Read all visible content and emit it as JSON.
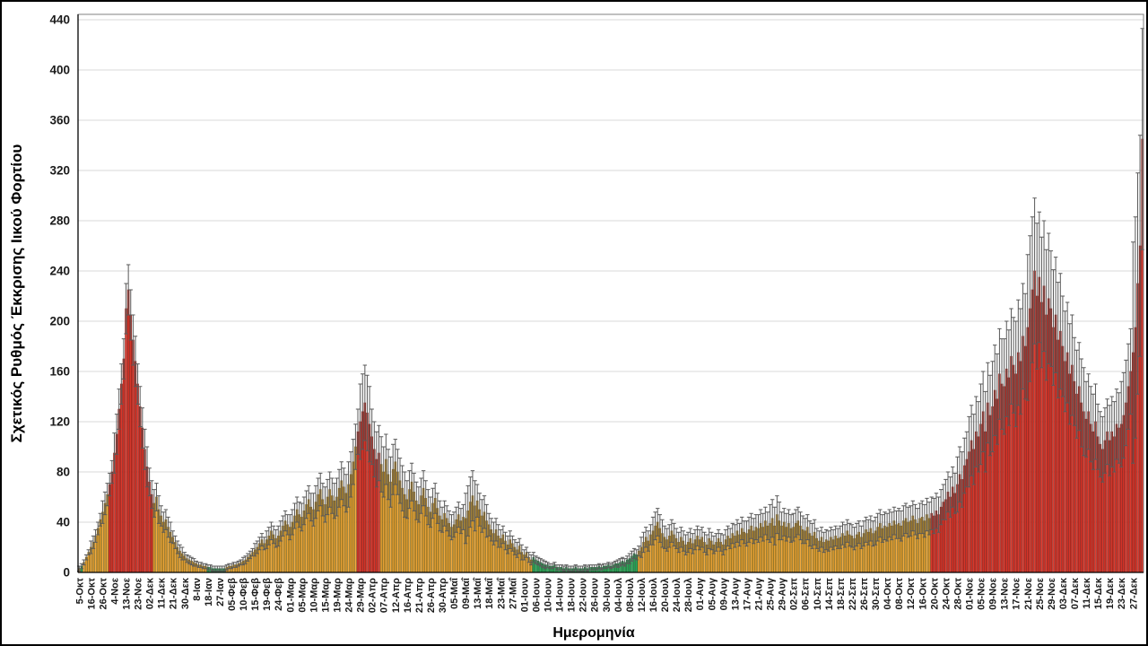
{
  "chart_data": {
    "type": "bar",
    "title": "",
    "ylabel": "Σχετικός Ρυθμός Έκκρισης Ιικού Φορτίου",
    "xlabel": "Ημερομηνία",
    "legend": "none",
    "grid": "horizontal",
    "y_axis": {
      "min": 0,
      "max": 440,
      "step": 40
    },
    "bars_per_label": 5,
    "categories": [
      "5-Οκτ",
      "16-Οκτ",
      "26-Οκτ",
      "4-Νοε",
      "13-Νοε",
      "23-Νοε",
      "02-Δεκ",
      "11-Δεκ",
      "21-Δεκ",
      "30-Δεκ",
      "8-Ιαν",
      "18-Ιαν",
      "27-Ιαν",
      "05-Φεβ",
      "10-Φεβ",
      "15-Φεβ",
      "19-Φεβ",
      "24-Φεβ",
      "01-Μαρ",
      "05-Μαρ",
      "10-Μαρ",
      "15-Μαρ",
      "19-Μαρ",
      "24-Μαρ",
      "29-Μαρ",
      "02-Απρ",
      "07-Απρ",
      "12-Απρ",
      "16-Απρ",
      "21-Απρ",
      "26-Απρ",
      "30-Απρ",
      "05-Μαΐ",
      "09-Μαΐ",
      "13-Μαΐ",
      "18-Μαΐ",
      "23-Μαΐ",
      "27-Μαΐ",
      "01-Ιουν",
      "06-Ιουν",
      "10-Ιουν",
      "14-Ιουν",
      "18-Ιουν",
      "22-Ιουν",
      "26-Ιουν",
      "30-Ιουν",
      "04-Ιουλ",
      "08-Ιουλ",
      "12-Ιουλ",
      "16-Ιουλ",
      "20-Ιουλ",
      "24-Ιουλ",
      "28-Ιουλ",
      "01-Αυγ",
      "05-Αυγ",
      "09-Αυγ",
      "13-Αυγ",
      "17-Αυγ",
      "21-Αυγ",
      "25-Αυγ",
      "29-Αυγ",
      "02-Σεπ",
      "06-Σεπ",
      "10-Σεπ",
      "14-Σεπ",
      "18-Σεπ",
      "22-Σεπ",
      "26-Σεπ",
      "30-Σεπ",
      "04-Οκτ",
      "08-Οκτ",
      "12-Οκτ",
      "16-Οκτ",
      "20-Οκτ",
      "24-Οκτ",
      "28-Οκτ",
      "01-Νοε",
      "05-Νοε",
      "09-Νοε",
      "13-Νοε",
      "17-Νοε",
      "21-Νοε",
      "25-Νοε",
      "29-Νοε",
      "03-Δεκ",
      "07-Δεκ",
      "11-Δεκ",
      "15-Δεκ",
      "19-Δεκ",
      "23-Δεκ",
      "27-Δεκ"
    ],
    "value_groups": [
      [
        3,
        5,
        8,
        12,
        16
      ],
      [
        20,
        24,
        29,
        35,
        42
      ],
      [
        48,
        55,
        62,
        70,
        80
      ],
      [
        95,
        110,
        130,
        150,
        170
      ],
      [
        210,
        225,
        205,
        185,
        168
      ],
      [
        150,
        132,
        115,
        98,
        84
      ],
      [
        72,
        62,
        55,
        60,
        50
      ],
      [
        45,
        40,
        42,
        36,
        32
      ],
      [
        28,
        24,
        20,
        17,
        15
      ],
      [
        13,
        11,
        10,
        9,
        8
      ],
      [
        7,
        6,
        6,
        5,
        5
      ],
      [
        4,
        4,
        3,
        3,
        3
      ],
      [
        3,
        3,
        3,
        4,
        5
      ],
      [
        5,
        6,
        6,
        7,
        8
      ],
      [
        9,
        10,
        12,
        14,
        16
      ],
      [
        18,
        20,
        23,
        26,
        23
      ],
      [
        26,
        29,
        33,
        30,
        27
      ],
      [
        29,
        33,
        37,
        41,
        38
      ],
      [
        36,
        40,
        45,
        50,
        46
      ],
      [
        44,
        49,
        54,
        58,
        52
      ],
      [
        50,
        56,
        62,
        66,
        58
      ],
      [
        54,
        60,
        66,
        61,
        57
      ],
      [
        60,
        67,
        73,
        68,
        63
      ],
      [
        70,
        78,
        88,
        100,
        112
      ],
      [
        120,
        128,
        135,
        127,
        118
      ],
      [
        108,
        98,
        90,
        95,
        86
      ],
      [
        80,
        90,
        78,
        72,
        82
      ],
      [
        88,
        80,
        73,
        67,
        62
      ],
      [
        58,
        66,
        72,
        64,
        57
      ],
      [
        54,
        61,
        67,
        59,
        52
      ],
      [
        48,
        55,
        59,
        51,
        45
      ],
      [
        42,
        47,
        43,
        39,
        36
      ],
      [
        38,
        42,
        46,
        41,
        44
      ],
      [
        43,
        49,
        56,
        61,
        53
      ],
      [
        57,
        50,
        45,
        48,
        41
      ],
      [
        38,
        34,
        31,
        34,
        29
      ],
      [
        27,
        30,
        25,
        22,
        26
      ],
      [
        23,
        20,
        18,
        21,
        16
      ],
      [
        14,
        16,
        12,
        10,
        12
      ],
      [
        10,
        9,
        8,
        7,
        6
      ],
      [
        6,
        5,
        5,
        6,
        4
      ],
      [
        4,
        4,
        3,
        4,
        3
      ],
      [
        3,
        3,
        4,
        3,
        3
      ],
      [
        3,
        4,
        3,
        4,
        4
      ],
      [
        4,
        4,
        5,
        4,
        5
      ],
      [
        5,
        6,
        5,
        6,
        7
      ],
      [
        7,
        8,
        9,
        8,
        10
      ],
      [
        11,
        13,
        15,
        14,
        17
      ],
      [
        20,
        24,
        28,
        25,
        30
      ],
      [
        33,
        37,
        40,
        35,
        31
      ],
      [
        28,
        26,
        29,
        33,
        30
      ],
      [
        27,
        24,
        28,
        25,
        22
      ],
      [
        24,
        27,
        23,
        26,
        29
      ],
      [
        26,
        28,
        24,
        22,
        27
      ],
      [
        25,
        22,
        24,
        27,
        24
      ],
      [
        22,
        26,
        29,
        27,
        31
      ],
      [
        29,
        33,
        30,
        35,
        32
      ],
      [
        31,
        34,
        37,
        33,
        36
      ],
      [
        35,
        39,
        36,
        41,
        37
      ],
      [
        39,
        43,
        37,
        46,
        41
      ],
      [
        37,
        40,
        36,
        39,
        35
      ],
      [
        36,
        39,
        41,
        37,
        34
      ],
      [
        33,
        36,
        31,
        29,
        32
      ],
      [
        27,
        25,
        28,
        24,
        26
      ],
      [
        25,
        28,
        26,
        29,
        27
      ],
      [
        28,
        31,
        29,
        33,
        30
      ],
      [
        29,
        27,
        30,
        32,
        28
      ],
      [
        31,
        34,
        32,
        35,
        31
      ],
      [
        33,
        36,
        39,
        35,
        37
      ],
      [
        36,
        39,
        37,
        41,
        38
      ],
      [
        39,
        37,
        41,
        43,
        40
      ],
      [
        41,
        45,
        42,
        39,
        43
      ],
      [
        44,
        41,
        46,
        43,
        47
      ],
      [
        45,
        49,
        46,
        52,
        56
      ],
      [
        58,
        64,
        60,
        68,
        63
      ],
      [
        70,
        78,
        74,
        85,
        90
      ],
      [
        96,
        105,
        98,
        112,
        108
      ],
      [
        118,
        128,
        112,
        135,
        125
      ],
      [
        132,
        145,
        138,
        158,
        150
      ],
      [
        148,
        162,
        155,
        172,
        165
      ],
      [
        158,
        175,
        168,
        188,
        180
      ],
      [
        195,
        210,
        225,
        240,
        220
      ],
      [
        235,
        215,
        228,
        205,
        218
      ],
      [
        210,
        195,
        205,
        185,
        192
      ],
      [
        180,
        168,
        175,
        158,
        165
      ],
      [
        152,
        142,
        148,
        135,
        128
      ],
      [
        122,
        128,
        118,
        112,
        120
      ],
      [
        108,
        102,
        98,
        105,
        112
      ],
      [
        105,
        112,
        108,
        118,
        115
      ],
      [
        118,
        125,
        135,
        148,
        160
      ],
      [
        175,
        195,
        230,
        260,
        345
      ]
    ],
    "group_errors": [
      2,
      5,
      9,
      16,
      20,
      16,
      11,
      8,
      5,
      3,
      2,
      2,
      2,
      2,
      3,
      5,
      7,
      8,
      10,
      11,
      13,
      14,
      15,
      18,
      30,
      22,
      20,
      18,
      15,
      14,
      12,
      10,
      10,
      20,
      13,
      9,
      7,
      6,
      4,
      3,
      2,
      2,
      2,
      2,
      2,
      2,
      3,
      4,
      8,
      11,
      9,
      8,
      8,
      8,
      7,
      8,
      9,
      10,
      11,
      15,
      11,
      11,
      10,
      8,
      8,
      9,
      9,
      10,
      11,
      11,
      12,
      12,
      13,
      14,
      16,
      22,
      28,
      32,
      36,
      38,
      42,
      58,
      52,
      46,
      40,
      35,
      30,
      26,
      28,
      34,
      88
    ],
    "color_segments": [
      {
        "from": 1,
        "to": 1,
        "color": "green"
      },
      {
        "from": 13,
        "to": 31,
        "color": "red"
      },
      {
        "from": 55,
        "to": 62,
        "color": "green"
      },
      {
        "from": 119,
        "to": 128,
        "color": "red"
      },
      {
        "from": 194,
        "to": 238,
        "color": "green"
      },
      {
        "from": 364,
        "to": 454,
        "color": "red"
      }
    ],
    "colors": {
      "orange": {
        "fill": "#F4A93C",
        "stroke": "#8B6914"
      },
      "red": {
        "fill": "#E23B2E",
        "stroke": "#8F1D16"
      },
      "green": {
        "fill": "#2EB05C",
        "stroke": "#1C6B38"
      },
      "error_bar": "#595959",
      "gridline": "#D9D9D9",
      "axis": "#000000",
      "plot_border": "#808080",
      "text": "#1A1A1A"
    }
  }
}
